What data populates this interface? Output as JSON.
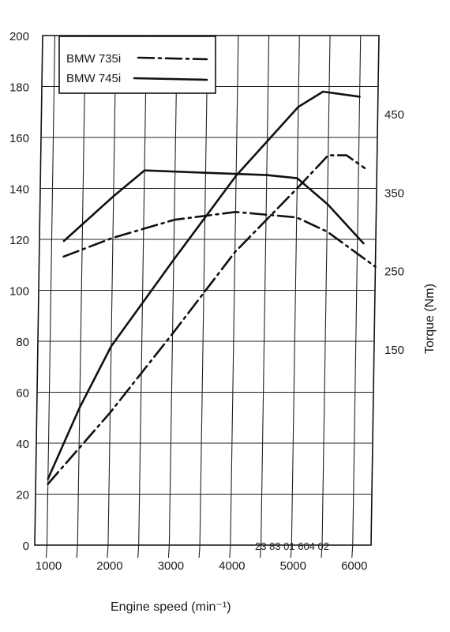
{
  "chart_data": {
    "type": "line",
    "xlabel": "Engine speed (min⁻¹)",
    "ylabel_right": "Torque (Nm)",
    "x_ticks": [
      1000,
      2000,
      3000,
      4000,
      5000,
      6000
    ],
    "y_left_ticks": [
      0,
      20,
      40,
      60,
      80,
      100,
      120,
      140,
      160,
      180,
      200
    ],
    "y_right_ticks": [
      150,
      250,
      350,
      450
    ],
    "xlim": [
      800,
      6300
    ],
    "ylim_left": [
      0,
      200
    ],
    "ylim_right": [
      -100,
      550
    ],
    "grid": true,
    "legend_position": "top-left",
    "legend": [
      {
        "label": "BMW 735i",
        "style": "dash-dot"
      },
      {
        "label": "BMW 745i",
        "style": "solid"
      }
    ],
    "figure_code": "23 83 01 604 02",
    "series": [
      {
        "name": "BMW 735i",
        "quantity": "power",
        "axis": "left",
        "style": "dash-dot",
        "x": [
          1000,
          2000,
          3000,
          4000,
          5000,
          5500,
          5800,
          6100
        ],
        "y": [
          24,
          52,
          83,
          115,
          140,
          153,
          153,
          148
        ]
      },
      {
        "name": "BMW 745i",
        "quantity": "power",
        "axis": "left",
        "style": "solid",
        "x": [
          1000,
          1500,
          2000,
          3000,
          4000,
          5000,
          5400,
          6000
        ],
        "y": [
          26,
          54,
          78,
          112,
          145,
          172,
          178,
          176
        ]
      },
      {
        "name": "BMW 735i",
        "quantity": "torque",
        "axis": "right",
        "style": "dash-dot",
        "x": [
          1200,
          2000,
          3000,
          4000,
          5000,
          5500,
          6000,
          6300
        ],
        "y": [
          268,
          292,
          315,
          325,
          318,
          300,
          272,
          255
        ]
      },
      {
        "name": "BMW 745i",
        "quantity": "torque",
        "axis": "right",
        "style": "solid",
        "x": [
          1200,
          2000,
          2500,
          3500,
          4500,
          5000,
          5500,
          6100
        ],
        "y": [
          288,
          345,
          378,
          375,
          372,
          368,
          335,
          285
        ]
      }
    ]
  }
}
